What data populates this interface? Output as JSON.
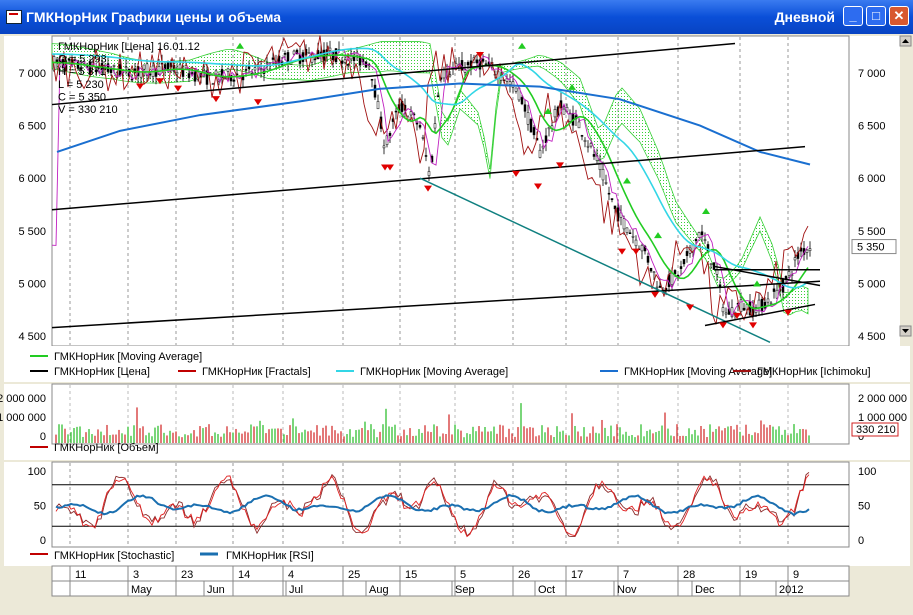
{
  "window": {
    "title": "ГМКНорНик Графики цены и объема",
    "mode": "Дневной",
    "buttons": {
      "minimize": "_",
      "maximize": "□",
      "close": "✕"
    }
  },
  "price_panel": {
    "ohlc": [
      "ГМКНорНик [Цена] 16.01.12",
      "O = 5 293",
      "H = 5 371",
      "L = 5 230",
      "C = 5 350",
      "V = 330 210"
    ],
    "y_ticks": [
      "7 000",
      "6 500",
      "6 000",
      "5 500",
      "5 000",
      "4 500"
    ],
    "current_price_label": "5 350",
    "legend": [
      "ГМКНорНик [Moving Average]",
      "ГМКНорНик [Цена]",
      "ГМКНорНик [Fractals]",
      "ГМКНорНик [Moving Average]",
      "ГМКНорНик [Moving Average]",
      "ГМКНорНик [Ichimoku]"
    ]
  },
  "volume_panel": {
    "y_ticks_left": [
      "2 000 000",
      "1 000 000",
      "0"
    ],
    "y_ticks_right": [
      "2 000 000",
      "1 000 000",
      "0"
    ],
    "current_label": "330 210",
    "legend": [
      "ГМКНорНик [Объем]"
    ]
  },
  "osc_panel": {
    "y_ticks": [
      "100",
      "50",
      "0"
    ],
    "legend": [
      "ГМКНорНик [Stochastic]",
      "ГМКНорНик [RSI]"
    ]
  },
  "time_axis": {
    "days": [
      "11",
      "3",
      "23",
      "14",
      "4",
      "25",
      "15",
      "5",
      "26",
      "17",
      "7",
      "28",
      "19",
      "9"
    ],
    "months": [
      "May",
      "Jun",
      "Jul",
      "Aug",
      "Sep",
      "Oct",
      "Nov",
      "Dec",
      "2012"
    ]
  },
  "colors": {
    "titlebar": "#0a4fd8",
    "ma_green": "#22cc22",
    "ma_cyan": "#33d6e6",
    "ma_blue": "#1a6fd0",
    "fractal_red": "#e00000",
    "fractal_green": "#22cc22",
    "ichimoku": "#a01010"
  }
}
